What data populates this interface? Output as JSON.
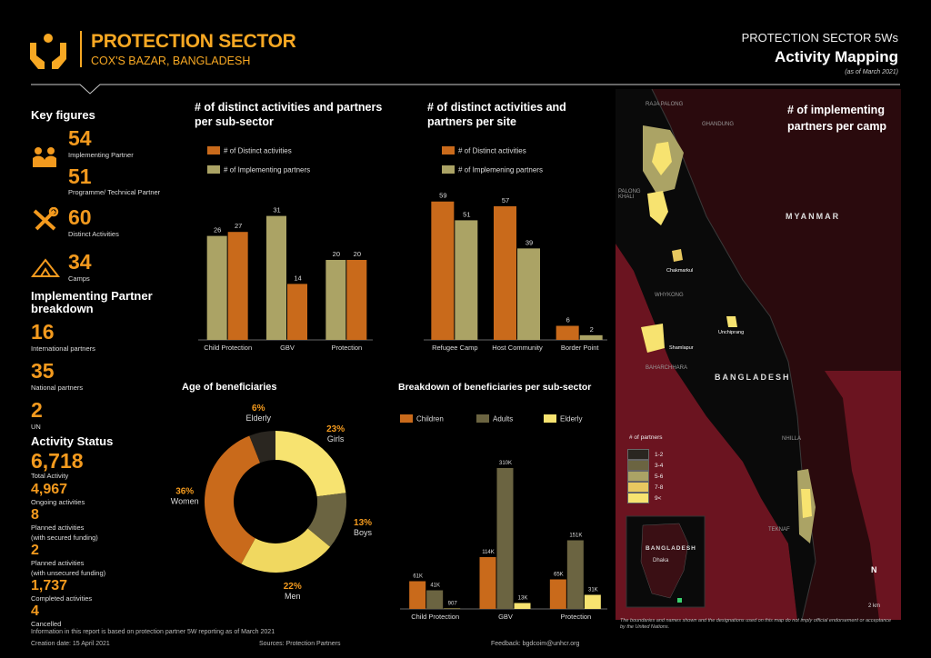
{
  "header": {
    "brand_title": "PROTECTION SECTOR",
    "brand_sub": "COX'S BAZAR, BANGLADESH",
    "right_line1": "PROTECTION SECTOR 5Ws",
    "right_line2": "Activity Mapping",
    "right_line3": "(as of March 2021)"
  },
  "key_figures": {
    "title": "Key figures",
    "implementing_partner": {
      "value": "54",
      "label": "Implementing Partner"
    },
    "technical_partner": {
      "value": "51",
      "label": "Programme/ Technical Partner"
    },
    "distinct_activities": {
      "value": "60",
      "label": "Distinct Activities"
    },
    "camps": {
      "value": "34",
      "label": "Camps"
    }
  },
  "partner_breakdown": {
    "title_line1": "Implementing Partner",
    "title_line2": "breakdown",
    "international": {
      "value": "16",
      "label": "International partners"
    },
    "national": {
      "value": "35",
      "label": "National partners"
    },
    "un": {
      "value": "2",
      "label": "UN"
    }
  },
  "activity_status": {
    "title": "Activity Status",
    "total": {
      "value": "6,718",
      "label": "Total Activity"
    },
    "ongoing": {
      "value": "4,967",
      "label": "Ongoing activities"
    },
    "planned_secured": {
      "value": "8",
      "label1": "Planned activities",
      "label2": "(with secured funding)"
    },
    "planned_unsecured": {
      "value": "2",
      "label1": "Planned activities",
      "label2": "(with unsecured funding)"
    },
    "completed": {
      "value": "1,737",
      "label": "Completed activities"
    },
    "cancelled": {
      "value": "4",
      "label": "Cancelled"
    }
  },
  "colors": {
    "orange": "#c96a1b",
    "khaki": "#aba365",
    "olive": "#6b6441",
    "yellow": "#f7e370",
    "dark": "#2a2620"
  },
  "chart_data": [
    {
      "type": "bar",
      "title_line1": "# of distinct activities and partners",
      "title_line2": "per sub-sector",
      "categories": [
        "Child Protection",
        "GBV",
        "Protection"
      ],
      "series": [
        {
          "name": "# of Distinct activities",
          "values": [
            27,
            14,
            20
          ]
        },
        {
          "name": "# of Implementing partners",
          "values": [
            26,
            31,
            20
          ]
        }
      ],
      "ylim": [
        0,
        35
      ]
    },
    {
      "type": "bar",
      "title_line1": "# of distinct activities and",
      "title_line2": "partners per site",
      "categories": [
        "Refugee Camp",
        "Host Community",
        "Border Point"
      ],
      "series": [
        {
          "name": "# of Distinct activities",
          "values": [
            59,
            57,
            6
          ]
        },
        {
          "name": "# of Implemening partners",
          "values": [
            51,
            39,
            2
          ]
        }
      ],
      "ylim": [
        0,
        62
      ]
    },
    {
      "type": "pie",
      "title": "Age of beneficiaries",
      "slices": [
        {
          "name": "Girls",
          "pct": "23%",
          "value": 23
        },
        {
          "name": "Boys",
          "pct": "13%",
          "value": 13
        },
        {
          "name": "Men",
          "pct": "22%",
          "value": 22
        },
        {
          "name": "Women",
          "pct": "36%",
          "value": 36
        },
        {
          "name": "Elderly",
          "pct": "6%",
          "value": 6
        }
      ]
    },
    {
      "type": "bar",
      "title": "Breakdown of beneficiaries per sub-sector",
      "categories": [
        "Child Protection",
        "GBV",
        "Protection"
      ],
      "series": [
        {
          "name": "Children",
          "values": [
            61,
            114,
            65
          ],
          "labels": [
            "61K",
            "114K",
            "65K"
          ]
        },
        {
          "name": "Adults",
          "values": [
            41,
            310,
            151
          ],
          "labels": [
            "41K",
            "310K",
            "151K"
          ]
        },
        {
          "name": "Elderly",
          "values": [
            0.9,
            13,
            31
          ],
          "labels": [
            "907",
            "13K",
            "31K"
          ]
        }
      ],
      "ylim": [
        0,
        320
      ]
    }
  ],
  "map": {
    "title_line1": "# of implementing",
    "title_line2": "partners per camp",
    "labels": {
      "myanmar": "MYANMAR",
      "bangladesh": "BANGLADESH",
      "raja_palong": "RAJA PALONG",
      "ghandung": "GHANDUNG",
      "palong_khali": "PALONG KHALI",
      "chakmarkul": "Chakmarkul",
      "whykong": "WHYKONG",
      "shamlapur": "Shamlapur",
      "unchiprang": "Unchiprang",
      "baharchhara": "BAHARCHHARA",
      "nhilla": "NHILLA",
      "teknaf": "TEKNAF",
      "inset_country": "BANGLADESH",
      "inset_city": "Dhaka",
      "north": "N",
      "scale": "2 km"
    },
    "legend_title": "# of partners",
    "legend": [
      {
        "label": "1-2",
        "color": "#2a2620"
      },
      {
        "label": "3-4",
        "color": "#6b6441"
      },
      {
        "label": "5-6",
        "color": "#aba365"
      },
      {
        "label": "7-8",
        "color": "#e8c860"
      },
      {
        "label": "9<",
        "color": "#f7e370"
      }
    ],
    "disclaimer": "The boundaries and names shown and the designations used on this map do not imply official endorsement or acceptance by the United Nations."
  },
  "footer": {
    "info": "Information in this report is based on protection partner 5W reporting as of March 2021",
    "creation": "Creation date: 15 April 2021",
    "sources": "Sources: Protection Partners",
    "feedback": "Feedback: bgdcoim@unhcr.org"
  }
}
